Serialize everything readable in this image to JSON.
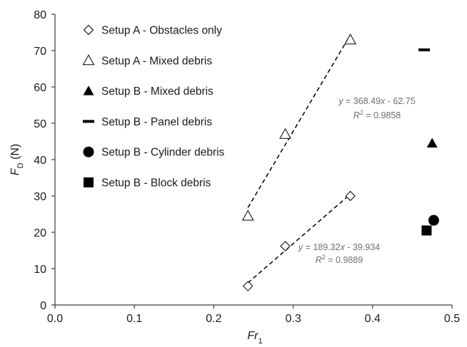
{
  "chart_data": {
    "type": "scatter",
    "xlabel": {
      "main": "Fr",
      "sub": "1"
    },
    "ylabel": {
      "main": "F",
      "sub": "D",
      "unit": " (N)"
    },
    "xlim": [
      0.0,
      0.5
    ],
    "ylim": [
      0,
      80
    ],
    "xticks": [
      0.0,
      0.1,
      0.2,
      0.3,
      0.4,
      0.5
    ],
    "xtick_labels": [
      "0.0",
      "0.1",
      "0.2",
      "0.3",
      "0.4",
      "0.5"
    ],
    "yticks": [
      0,
      10,
      20,
      30,
      40,
      50,
      60,
      70,
      80
    ],
    "ytick_labels": [
      "0",
      "10",
      "20",
      "30",
      "40",
      "50",
      "60",
      "70",
      "80"
    ],
    "grid": false,
    "legend_position": "top-left",
    "colors": {
      "marker": "#000000",
      "axis": "#3a3a3a",
      "equation_text": "#6f6f6f"
    },
    "series": [
      {
        "name": "Setup A - Obstacles only",
        "marker": "diamond-open",
        "x": [
          0.243,
          0.29,
          0.372
        ],
        "y": [
          5.2,
          16.2,
          30.0
        ]
      },
      {
        "name": "Setup A - Mixed debris",
        "marker": "triangle-open",
        "x": [
          0.243,
          0.29,
          0.372
        ],
        "y": [
          24.5,
          47.0,
          73.0
        ]
      },
      {
        "name": "Setup B - Mixed debris",
        "marker": "triangle-filled",
        "x": [
          0.475
        ],
        "y": [
          44.5
        ]
      },
      {
        "name": "Setup B - Panel debris",
        "marker": "dash",
        "x": [
          0.465
        ],
        "y": [
          70.2
        ]
      },
      {
        "name": "Setup B - Cylinder debris",
        "marker": "circle-filled",
        "x": [
          0.477
        ],
        "y": [
          23.3
        ]
      },
      {
        "name": "Setup B - Block debris",
        "marker": "square-filled",
        "x": [
          0.468
        ],
        "y": [
          20.5
        ]
      }
    ],
    "trendlines": [
      {
        "series": "Setup A - Mixed debris",
        "slope": 368.49,
        "intercept": -62.75,
        "x_range": [
          0.243,
          0.372
        ],
        "equation": {
          "y_var": "y",
          "middle": " = 368.49",
          "x_var": "x",
          "tail": " - 62.75"
        },
        "r2": {
          "r_var": "R",
          "sup": "2",
          "tail": " = 0.9858"
        }
      },
      {
        "series": "Setup A - Obstacles only",
        "slope": 189.32,
        "intercept": -39.934,
        "x_range": [
          0.243,
          0.372
        ],
        "equation": {
          "y_var": "y",
          "middle": " = 189.32",
          "x_var": "x",
          "tail": " - 39.934"
        },
        "r2": {
          "r_var": "R",
          "sup": "2",
          "tail": " = 0.9889"
        }
      }
    ]
  }
}
